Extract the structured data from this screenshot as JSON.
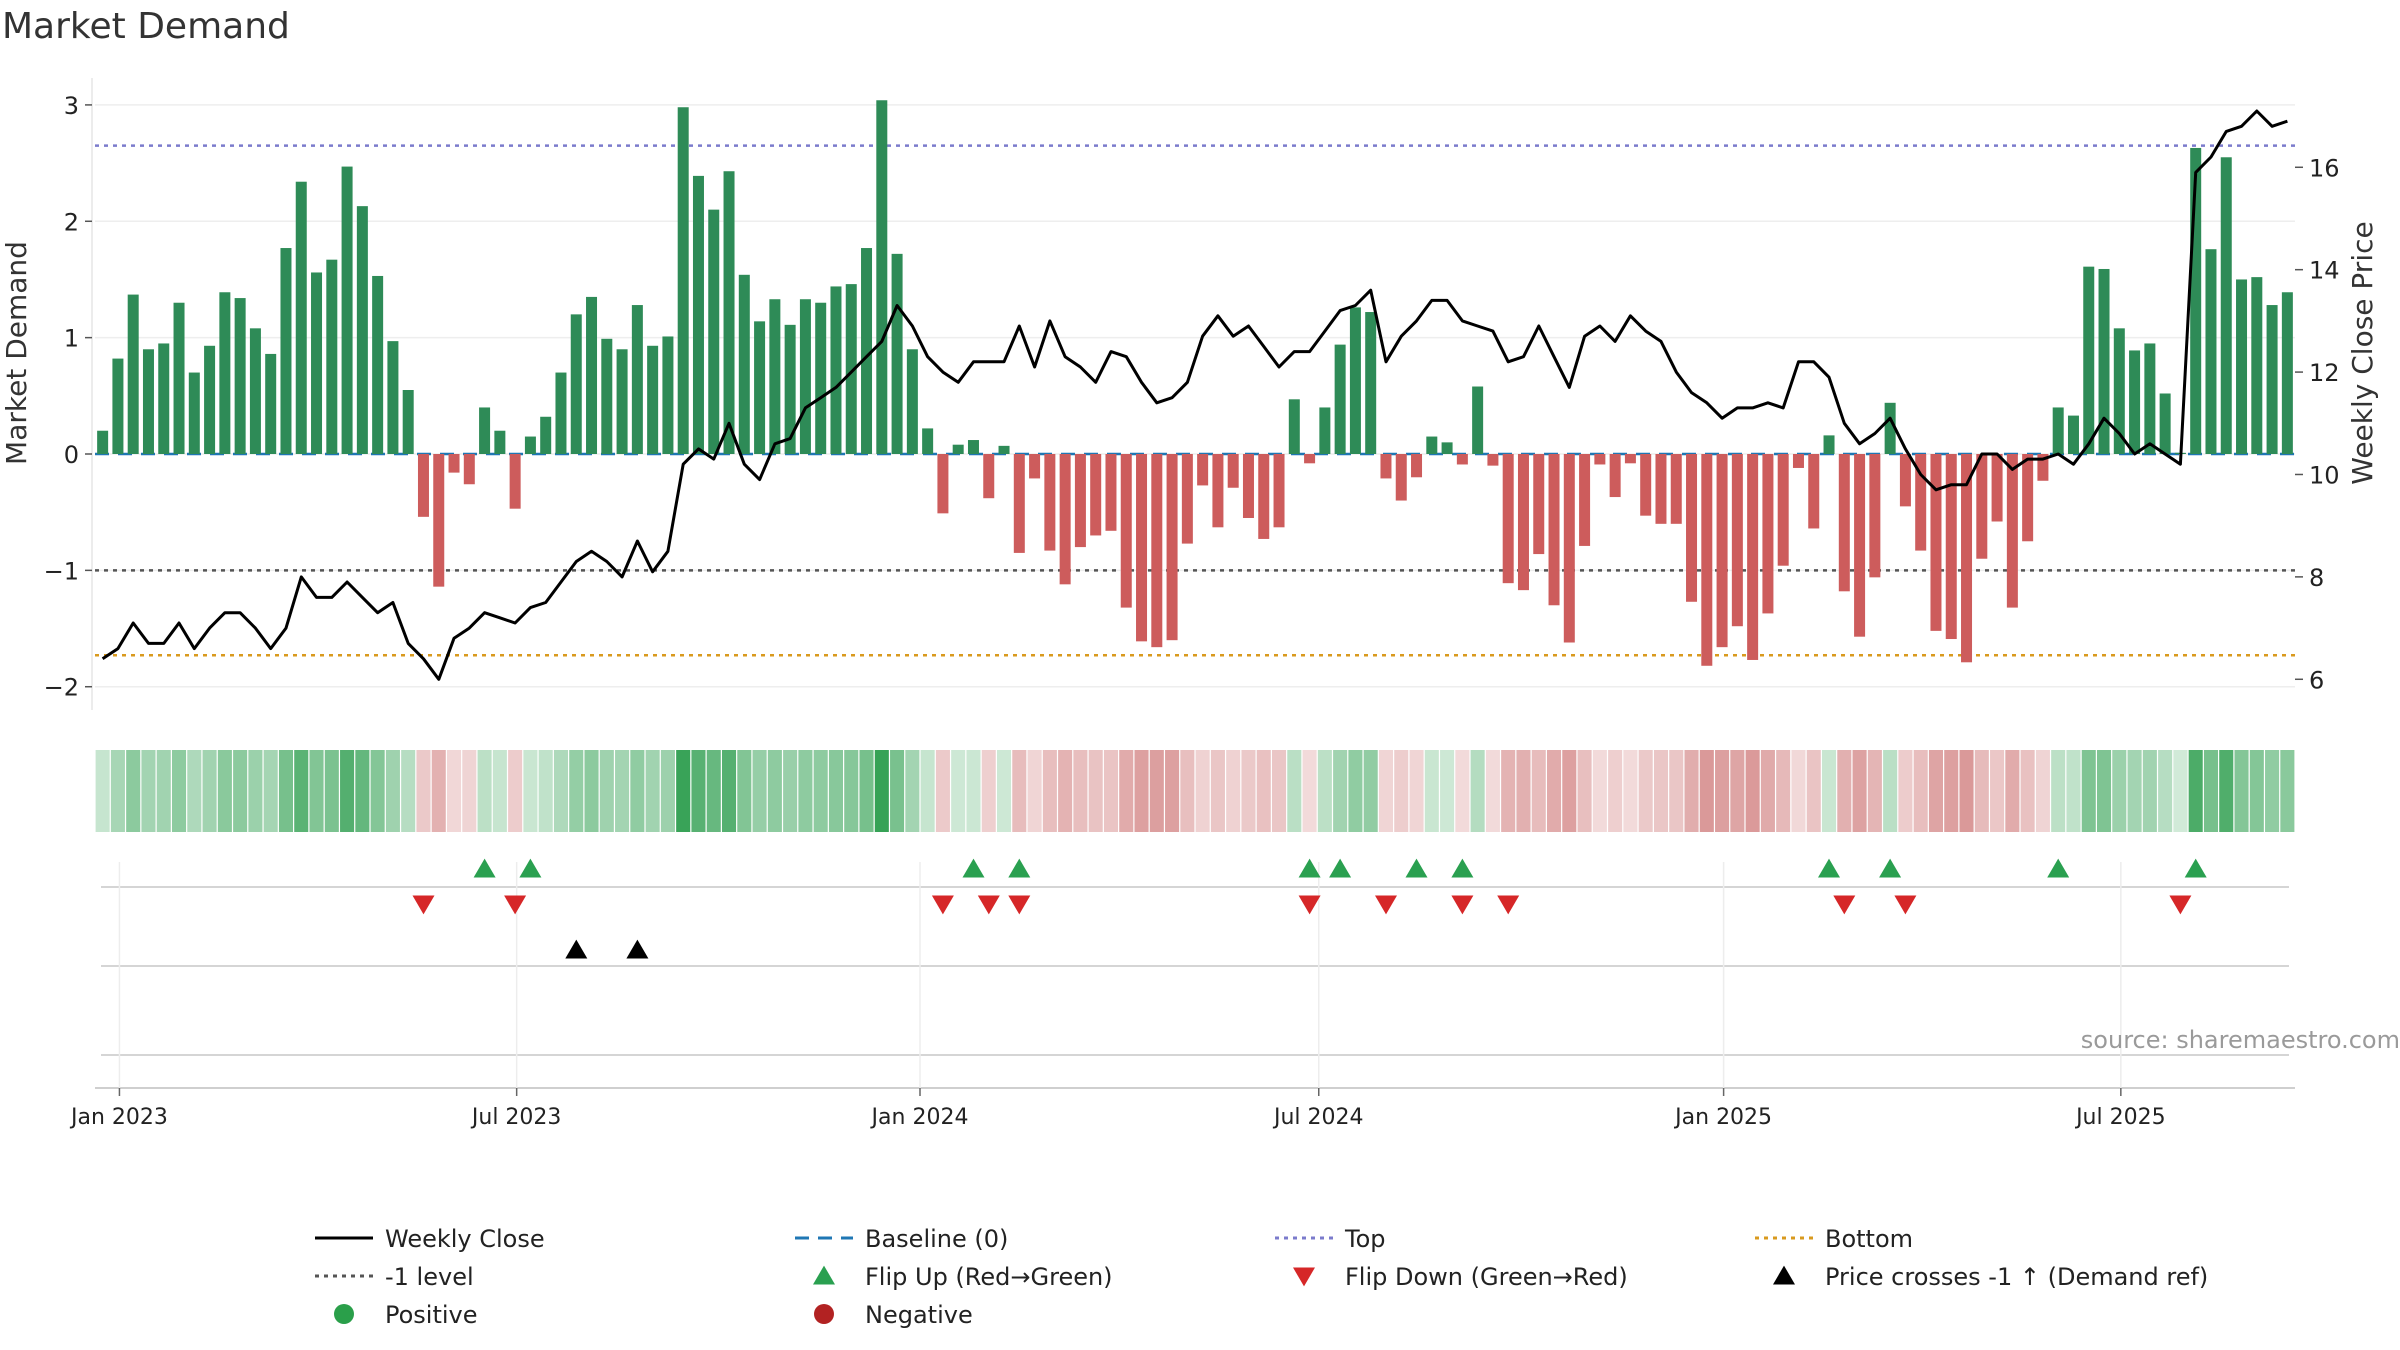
{
  "chart_data": {
    "type": "bar",
    "title": "Market Demand",
    "ylabel_left": "Market Demand",
    "ylabel_right": "Weekly Close Price",
    "source": "source: sharemaestro.com",
    "ylim_left": [
      -2.2,
      3.3
    ],
    "ylim_right": [
      5.4,
      17.9
    ],
    "yticks_left": [
      "3",
      "2",
      "1",
      "0",
      "−1",
      "−2"
    ],
    "yticks_left_values": [
      3,
      2,
      1,
      0,
      -1,
      -2
    ],
    "yticks_right": [
      "16",
      "14",
      "12",
      "10",
      "8",
      "6"
    ],
    "yticks_right_values": [
      16,
      14,
      12,
      10,
      8,
      6
    ],
    "xtick_labels": [
      "Jan 2023",
      "Jul 2023",
      "Jan 2024",
      "Jul 2024",
      "Jan 2025",
      "Jul 2025"
    ],
    "xtick_weeks": [
      1.6,
      27.6,
      54.0,
      80.1,
      106.6,
      132.6
    ],
    "levels": {
      "top": 2.65,
      "minus_one": -1,
      "bottom": -1.73,
      "baseline": 0
    },
    "demand": [
      0.2,
      0.82,
      1.37,
      0.9,
      0.95,
      1.3,
      0.7,
      0.93,
      1.39,
      1.34,
      1.08,
      0.86,
      1.77,
      2.34,
      1.56,
      1.67,
      2.47,
      2.13,
      1.53,
      0.97,
      0.55,
      -0.54,
      -1.14,
      -0.16,
      -0.26,
      0.4,
      0.2,
      -0.47,
      0.15,
      0.32,
      0.7,
      1.2,
      1.35,
      0.99,
      0.9,
      1.28,
      0.93,
      1.01,
      2.98,
      2.39,
      2.1,
      2.43,
      1.54,
      1.14,
      1.33,
      1.11,
      1.33,
      1.3,
      1.44,
      1.46,
      1.77,
      3.04,
      1.72,
      0.9,
      0.22,
      -0.51,
      0.08,
      0.12,
      -0.38,
      0.07,
      -0.85,
      -0.21,
      -0.83,
      -1.12,
      -0.8,
      -0.7,
      -0.66,
      -1.32,
      -1.61,
      -1.66,
      -1.6,
      -0.77,
      -0.27,
      -0.63,
      -0.29,
      -0.55,
      -0.73,
      -0.63,
      0.47,
      -0.08,
      0.4,
      0.94,
      1.26,
      1.22,
      -0.21,
      -0.4,
      -0.2,
      0.15,
      0.1,
      -0.09,
      0.58,
      -0.1,
      -1.11,
      -1.17,
      -0.86,
      -1.3,
      -1.62,
      -0.79,
      -0.09,
      -0.37,
      -0.08,
      -0.53,
      -0.6,
      -0.6,
      -1.27,
      -1.82,
      -1.66,
      -1.48,
      -1.77,
      -1.37,
      -0.96,
      -0.12,
      -0.64,
      0.16,
      -1.18,
      -1.57,
      -1.06,
      0.44,
      -0.45,
      -0.83,
      -1.52,
      -1.59,
      -1.79,
      -0.9,
      -0.58,
      -1.32,
      -0.75,
      -0.23,
      0.4,
      0.33,
      1.61,
      1.59,
      1.08,
      0.89,
      0.95,
      0.52,
      0.01,
      2.63,
      1.76,
      2.55,
      1.5,
      1.52,
      1.28,
      1.39
    ],
    "weekly_close": [
      6.4,
      6.6,
      7.1,
      6.7,
      6.7,
      7.1,
      6.6,
      7.0,
      7.3,
      7.3,
      7.0,
      6.6,
      7.0,
      8.0,
      7.6,
      7.6,
      7.9,
      7.6,
      7.3,
      7.5,
      6.7,
      6.4,
      6.0,
      6.8,
      7.0,
      7.3,
      7.2,
      7.1,
      7.4,
      7.5,
      7.9,
      8.3,
      8.5,
      8.3,
      8.0,
      8.7,
      8.1,
      8.5,
      10.2,
      10.5,
      10.3,
      11.0,
      10.2,
      9.9,
      10.6,
      10.7,
      11.3,
      11.5,
      11.7,
      12.0,
      12.3,
      12.6,
      13.3,
      12.9,
      12.3,
      12.0,
      11.8,
      12.2,
      12.2,
      12.2,
      12.9,
      12.1,
      13.0,
      12.3,
      12.1,
      11.8,
      12.4,
      12.3,
      11.8,
      11.4,
      11.5,
      11.8,
      12.7,
      13.1,
      12.7,
      12.9,
      12.5,
      12.1,
      12.4,
      12.4,
      12.8,
      13.2,
      13.3,
      13.6,
      12.2,
      12.7,
      13.0,
      13.4,
      13.4,
      13.0,
      12.9,
      12.8,
      12.2,
      12.3,
      12.9,
      12.3,
      11.7,
      12.7,
      12.9,
      12.6,
      13.1,
      12.8,
      12.6,
      12.0,
      11.6,
      11.4,
      11.1,
      11.3,
      11.3,
      11.4,
      11.3,
      12.2,
      12.2,
      11.9,
      11.0,
      10.6,
      10.8,
      11.1,
      10.5,
      10.0,
      9.7,
      9.8,
      9.8,
      10.4,
      10.4,
      10.1,
      10.3,
      10.3,
      10.4,
      10.2,
      10.6,
      11.1,
      10.8,
      10.4,
      10.6,
      10.4,
      10.2,
      15.9,
      16.2,
      16.7,
      16.8,
      17.1,
      16.8,
      16.9
    ],
    "flip_up_weeks": [
      25,
      28,
      57,
      60,
      79,
      81,
      86,
      89,
      113,
      117,
      128,
      137
    ],
    "flip_down_weeks": [
      21,
      27,
      55,
      58,
      60,
      79,
      84,
      89,
      92,
      114,
      118,
      136
    ],
    "price_cross_weeks": [
      31,
      35
    ],
    "legend": [
      {
        "label": "Weekly Close",
        "kind": "line-solid",
        "color": "#000000"
      },
      {
        "label": "Baseline (0)",
        "kind": "line-dashed",
        "color": "#1f77b4"
      },
      {
        "label": "Top",
        "kind": "line-dotted",
        "color": "#7b7bcc"
      },
      {
        "label": "Bottom",
        "kind": "line-dotted",
        "color": "#d99a1e"
      },
      {
        "label": "-1 level",
        "kind": "line-dotted",
        "color": "#555555"
      },
      {
        "label": "Flip Up (Red→Green)",
        "kind": "tri-up",
        "color": "#2aa050"
      },
      {
        "label": "Flip Down (Green→Red)",
        "kind": "tri-down",
        "color": "#d62728"
      },
      {
        "label": "Price crosses -1 ↑ (Demand ref)",
        "kind": "tri-up",
        "color": "#000000"
      },
      {
        "label": "Positive",
        "kind": "dot",
        "color": "#2a9f4a"
      },
      {
        "label": "Negative",
        "kind": "dot",
        "color": "#b22222"
      }
    ],
    "colors": {
      "positive_bar": "#2e8b57",
      "negative_bar": "#cd5c5c",
      "positive_heat": "#2e9e4f",
      "negative_heat": "#c76464",
      "price_line": "#000000"
    }
  }
}
